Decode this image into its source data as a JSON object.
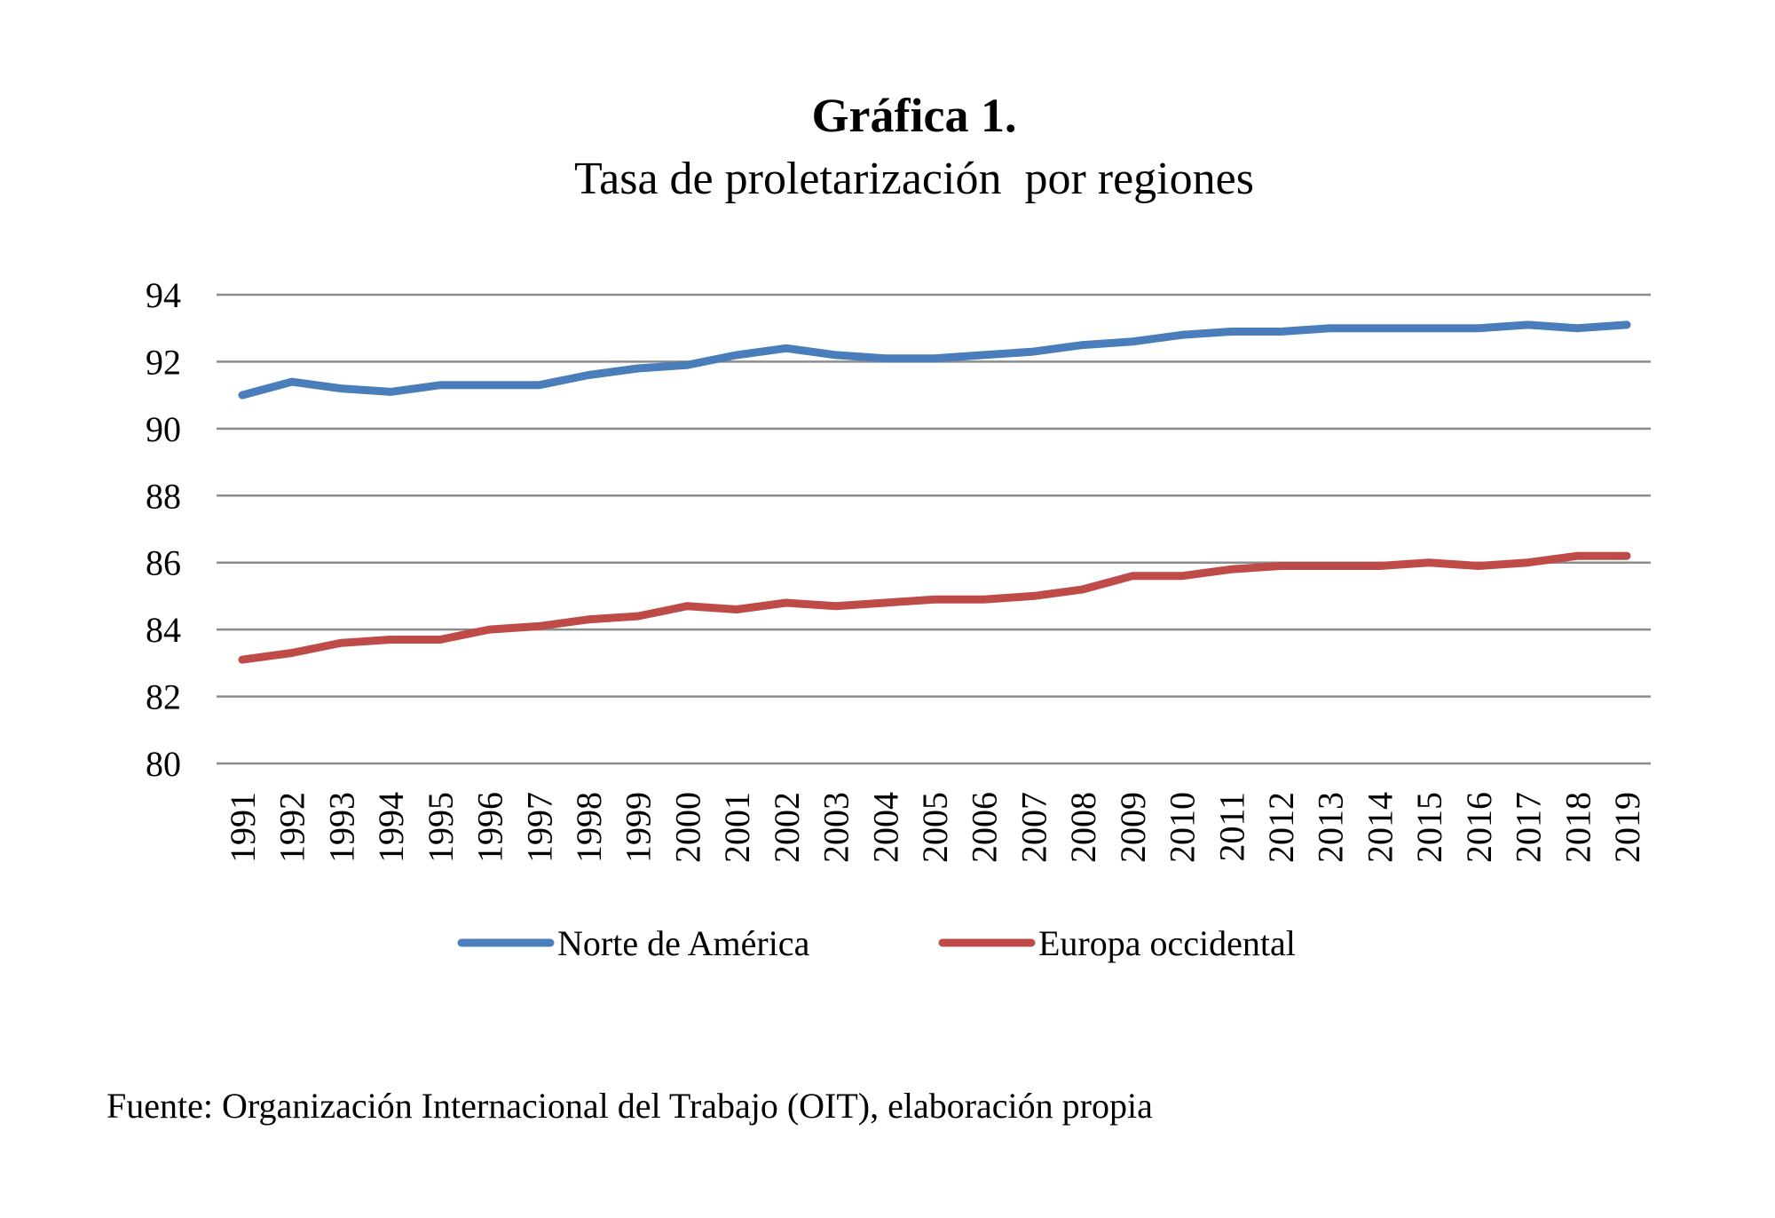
{
  "chart_data": {
    "type": "line",
    "title": "Gráfica 1.",
    "subtitle": "Tasa de proletarización  por regiones",
    "xlabel": "",
    "ylabel": "",
    "ylim": [
      80,
      94
    ],
    "yticks": [
      80,
      82,
      84,
      86,
      88,
      90,
      92,
      94
    ],
    "grid": true,
    "legend_position": "bottom",
    "categories": [
      "1991",
      "1992",
      "1993",
      "1994",
      "1995",
      "1996",
      "1997",
      "1998",
      "1999",
      "2000",
      "2001",
      "2002",
      "2003",
      "2004",
      "2005",
      "2006",
      "2007",
      "2008",
      "2009",
      "2010",
      "2011",
      "2012",
      "2013",
      "2014",
      "2015",
      "2016",
      "2017",
      "2018",
      "2019"
    ],
    "series": [
      {
        "name": "Norte de América",
        "color": "#4a7ebb",
        "values": [
          91.0,
          91.4,
          91.2,
          91.1,
          91.3,
          91.3,
          91.3,
          91.6,
          91.8,
          91.9,
          92.2,
          92.4,
          92.2,
          92.1,
          92.1,
          92.2,
          92.3,
          92.5,
          92.6,
          92.8,
          92.9,
          92.9,
          93.0,
          93.0,
          93.0,
          93.0,
          93.1,
          93.0,
          93.1
        ]
      },
      {
        "name": "Europa occidental",
        "color": "#be4b48",
        "values": [
          83.1,
          83.3,
          83.6,
          83.7,
          83.7,
          84.0,
          84.1,
          84.3,
          84.4,
          84.7,
          84.6,
          84.8,
          84.7,
          84.8,
          84.9,
          84.9,
          85.0,
          85.2,
          85.6,
          85.6,
          85.8,
          85.9,
          85.9,
          85.9,
          86.0,
          85.9,
          86.0,
          86.2,
          86.2
        ]
      }
    ]
  },
  "source_note": "Fuente: Organización  Internacional del Trabajo (OIT), elaboración propia"
}
